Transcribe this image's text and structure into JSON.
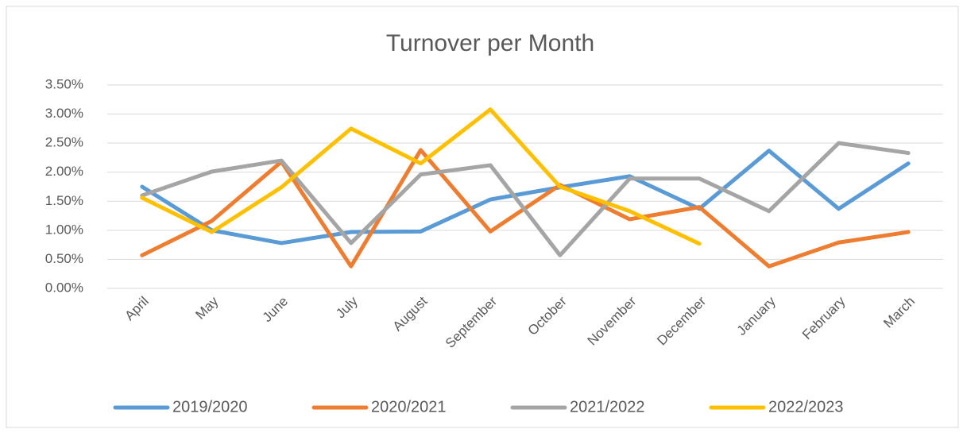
{
  "chart_data": {
    "type": "line",
    "title": "Turnover per Month",
    "categories": [
      "April",
      "May",
      "June",
      "July",
      "August",
      "September",
      "October",
      "November",
      "December",
      "January",
      "February",
      "March"
    ],
    "series": [
      {
        "name": "2019/2020",
        "color": "#5b9bd5",
        "values": [
          1.75,
          1.0,
          0.78,
          0.97,
          0.98,
          1.53,
          1.74,
          1.93,
          1.37,
          2.37,
          1.37,
          2.15
        ]
      },
      {
        "name": "2020/2021",
        "color": "#ed7d31",
        "values": [
          0.57,
          1.16,
          2.18,
          0.38,
          2.38,
          0.98,
          1.78,
          1.19,
          1.4,
          0.38,
          0.79,
          0.97
        ]
      },
      {
        "name": "2021/2022",
        "color": "#a5a5a5",
        "values": [
          1.6,
          2.01,
          2.2,
          0.78,
          1.96,
          2.12,
          0.57,
          1.89,
          1.89,
          1.33,
          2.5,
          2.33
        ]
      },
      {
        "name": "2022/2023",
        "color": "#ffc000",
        "values": [
          1.56,
          0.97,
          1.74,
          2.75,
          2.15,
          3.08,
          1.75,
          1.33,
          0.77,
          null,
          null,
          null
        ]
      }
    ],
    "ylim": [
      0,
      3.5
    ],
    "yticks": [
      {
        "value": 0,
        "label": "0.00%"
      },
      {
        "value": 0.5,
        "label": "0.50%"
      },
      {
        "value": 1,
        "label": "1.00%"
      },
      {
        "value": 1.5,
        "label": "1.50%"
      },
      {
        "value": 2,
        "label": "2.00%"
      },
      {
        "value": 2.5,
        "label": "2.50%"
      },
      {
        "value": 3,
        "label": "3.00%"
      },
      {
        "value": 3.5,
        "label": "3.50%"
      }
    ],
    "grid": true,
    "legend": "bottom"
  }
}
